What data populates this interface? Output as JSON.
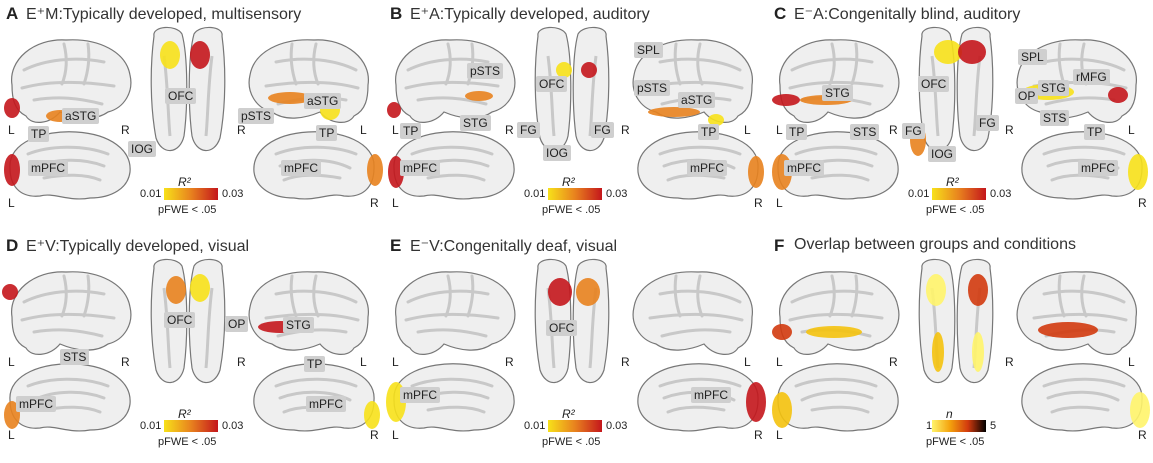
{
  "panels": [
    {
      "letter": "A",
      "title": "E⁺M:Typically developed, multisensory",
      "tags": [
        "aSTG",
        "TP",
        "OFC",
        "IOG",
        "pSTS",
        "aSTG",
        "TP",
        "mPFC",
        "mPFC"
      ],
      "sides": [
        "L",
        "R",
        "L",
        "R",
        "R",
        "L"
      ],
      "cb": {
        "title": "R²",
        "min": "0.01",
        "max": "0.03",
        "p": "pFWE < .05"
      }
    },
    {
      "letter": "B",
      "title": "E⁺A:Typically developed, auditory",
      "tags": [
        "pSTS",
        "TP",
        "STG",
        "OFC",
        "FG",
        "FG",
        "IOG",
        "SPL",
        "pSTS",
        "aSTG",
        "TP",
        "mPFC",
        "mPFC"
      ],
      "sides": [
        "L",
        "R",
        "L",
        "R",
        "R",
        "L"
      ],
      "cb": {
        "title": "R²",
        "min": "0.01",
        "max": "0.03",
        "p": "pFWE < .05"
      }
    },
    {
      "letter": "C",
      "title": "E⁻A:Congenitally blind, auditory",
      "tags": [
        "STG",
        "TP",
        "STS",
        "OFC",
        "FG",
        "FG",
        "IOG",
        "SPL",
        "OP",
        "rMFG",
        "STG",
        "STS",
        "TP",
        "mPFC",
        "mPFC"
      ],
      "sides": [
        "L",
        "R",
        "L",
        "R",
        "R",
        "L"
      ],
      "cb": {
        "title": "R²",
        "min": "0.01",
        "max": "0.03",
        "p": "pFWE < .05"
      }
    },
    {
      "letter": "D",
      "title": "E⁺V:Typically developed, visual",
      "tags": [
        "STS",
        "OFC",
        "OP",
        "STG",
        "TP",
        "mPFC",
        "mPFC"
      ],
      "sides": [
        "L",
        "R",
        "L",
        "R",
        "R",
        "L"
      ],
      "cb": {
        "title": "R²",
        "min": "0.01",
        "max": "0.03",
        "p": "pFWE < .05"
      }
    },
    {
      "letter": "E",
      "title": "E⁻V:Congenitally deaf, visual",
      "tags": [
        "OFC",
        "mPFC",
        "mPFC"
      ],
      "sides": [
        "L",
        "R",
        "L",
        "R",
        "R",
        "L"
      ],
      "cb": {
        "title": "R²",
        "min": "0.01",
        "max": "0.03",
        "p": "pFWE < .05"
      }
    },
    {
      "letter": "F",
      "title": "Overlap between groups and conditions",
      "tags": [],
      "sides": [
        "L",
        "R",
        "L",
        "R",
        "R",
        "L"
      ],
      "cb": {
        "title": "n",
        "min": "1",
        "max": "5",
        "p": "pFWE < .05"
      }
    }
  ],
  "colors": {
    "brain": "#efefef",
    "sulcus": "#c8c8c8",
    "outline": "#777777",
    "heat_low": "#f7e11a",
    "heat_mid": "#e8821e",
    "heat_high": "#c4161c",
    "overlap_low": "#fff46a",
    "overlap_high": "#000000",
    "tag_bg": "#cfcfcf"
  }
}
